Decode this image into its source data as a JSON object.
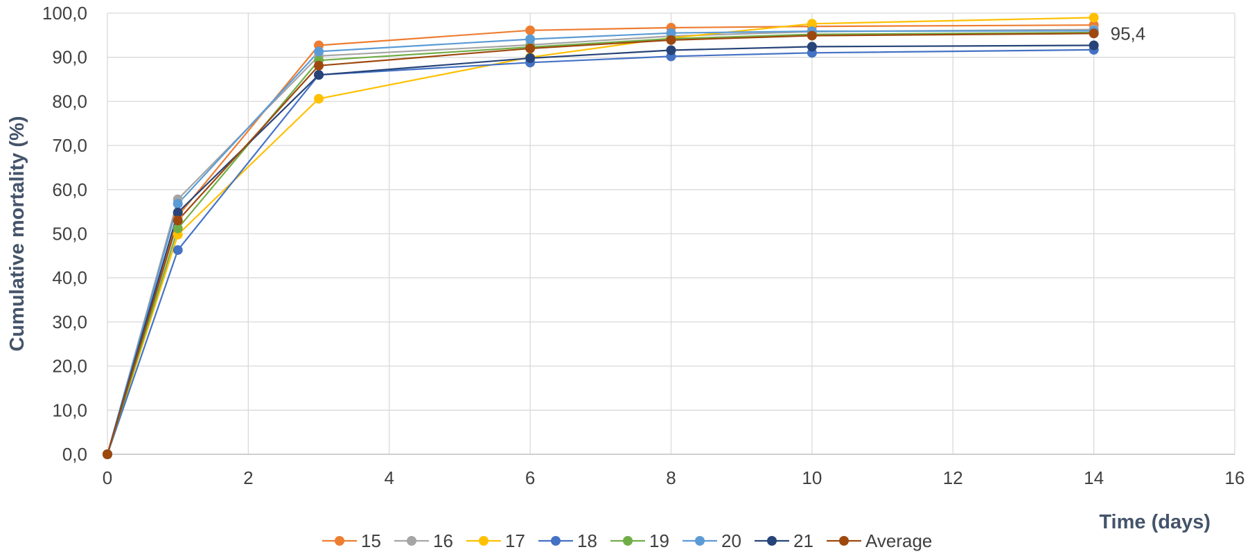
{
  "chart_data": {
    "type": "line",
    "title": "",
    "xlabel": "Time (days)",
    "ylabel": "Cumulative mortality (%)",
    "xlim": [
      0,
      16
    ],
    "ylim": [
      0,
      100
    ],
    "x_ticks": [
      "0",
      "2",
      "4",
      "6",
      "8",
      "10",
      "12",
      "14",
      "16"
    ],
    "y_ticks": [
      "0,0",
      "10,0",
      "20,0",
      "30,0",
      "40,0",
      "50,0",
      "60,0",
      "70,0",
      "80,0",
      "90,0",
      "100,0"
    ],
    "grid": true,
    "legend_position": "bottom",
    "x": [
      0,
      1,
      3,
      6,
      8,
      10,
      14
    ],
    "series": [
      {
        "name": "15",
        "color": "#ED7D31",
        "values": [
          0,
          54,
          92.7,
          96.1,
          96.7,
          97.0,
          97.3
        ]
      },
      {
        "name": "16",
        "color": "#A5A5A5",
        "values": [
          0,
          57.8,
          90.3,
          92.8,
          94.8,
          95.8,
          96.3
        ]
      },
      {
        "name": "17",
        "color": "#FFC000",
        "values": [
          0,
          49.8,
          80.6,
          90.0,
          94.4,
          97.6,
          99.0
        ]
      },
      {
        "name": "18",
        "color": "#4472C4",
        "values": [
          0,
          46.3,
          86.0,
          88.8,
          90.2,
          91.0,
          91.7
        ]
      },
      {
        "name": "19",
        "color": "#70AD47",
        "values": [
          0,
          51.2,
          89.3,
          92.3,
          94.2,
          95.2,
          95.6
        ]
      },
      {
        "name": "20",
        "color": "#5B9BD5",
        "values": [
          0,
          56.8,
          91.3,
          94.1,
          95.5,
          95.9,
          96.0
        ]
      },
      {
        "name": "21",
        "color": "#264478",
        "values": [
          0,
          54.8,
          86.0,
          89.8,
          91.6,
          92.4,
          92.7
        ]
      },
      {
        "name": "Average",
        "color": "#9E480E",
        "values": [
          0,
          53.0,
          88.1,
          92.0,
          93.9,
          94.9,
          95.4
        ]
      }
    ],
    "annotations": [
      {
        "series": "Average",
        "x": 14,
        "text": "95,4"
      }
    ]
  }
}
